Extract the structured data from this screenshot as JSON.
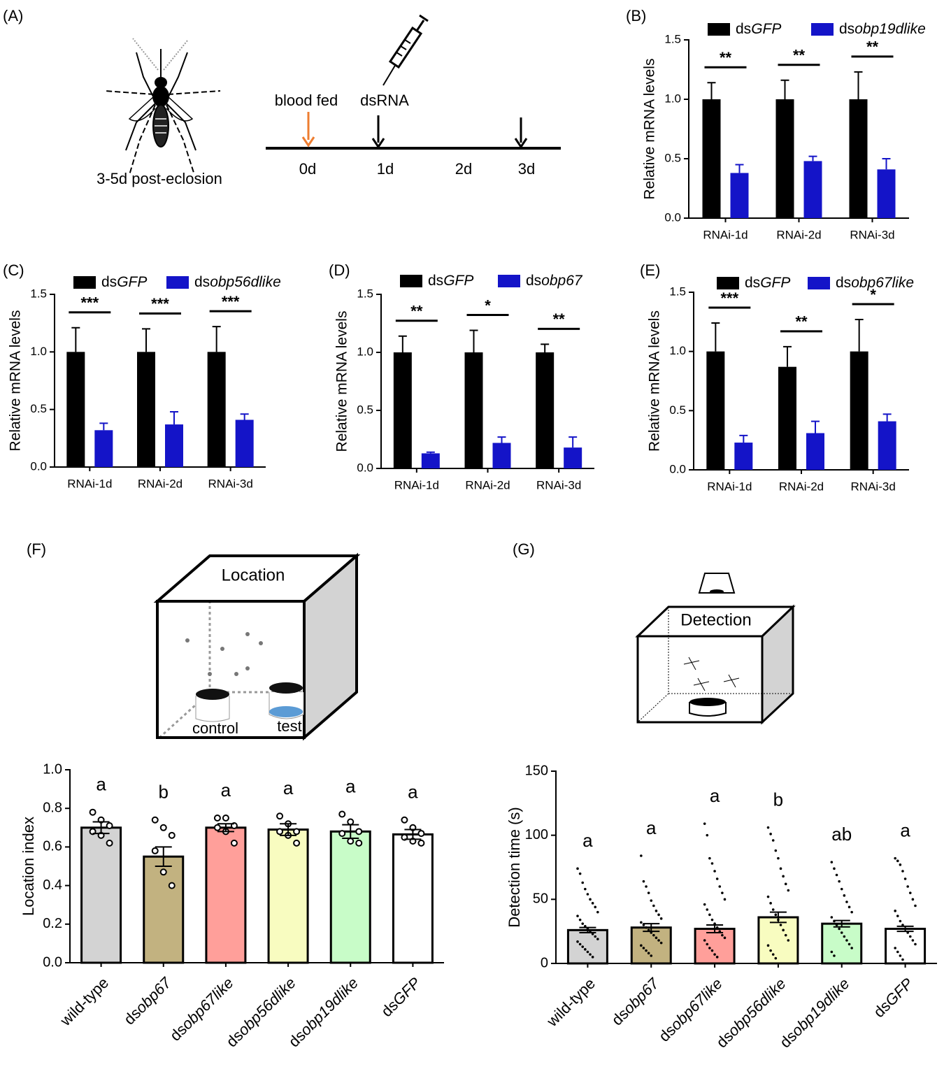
{
  "diagram_a": {
    "label": "(A)",
    "caption": "3-5d  post-eclosion",
    "events": [
      "blood fed",
      "dsRNA"
    ],
    "days": [
      "0d",
      "1d",
      "2d",
      "3d"
    ]
  },
  "diagram_f": {
    "label": "(F)",
    "box_title": "Location",
    "jars": [
      "control",
      "test"
    ]
  },
  "diagram_g": {
    "label": "(G)",
    "box_title": "Detection"
  },
  "chart_data": [
    {
      "type": "bar",
      "label": "(B)",
      "ylabel": "Relative mRNA levels",
      "categories": [
        "RNAi-1d",
        "RNAi-2d",
        "RNAi-3d"
      ],
      "series": [
        {
          "name": "dsGFP",
          "color": "#000000",
          "values": [
            1,
            1,
            1
          ],
          "errors": [
            0.14,
            0.16,
            0.23
          ]
        },
        {
          "name": "dsobp19dlike",
          "color": "#1414c8",
          "values": [
            0.38,
            0.48,
            0.41
          ],
          "errors": [
            0.07,
            0.04,
            0.09
          ]
        }
      ],
      "significance": [
        "**",
        "**",
        "**"
      ],
      "ylim": [
        0,
        1.5
      ],
      "yticks": [
        {
          "value": 0,
          "label": "0.0"
        },
        {
          "value": 0.5,
          "label": "0.5"
        },
        {
          "value": 1,
          "label": "1.0"
        },
        {
          "value": 1.5,
          "label": "1.5"
        }
      ]
    },
    {
      "type": "bar",
      "label": "(C)",
      "ylabel": "Relative mRNA levels",
      "categories": [
        "RNAi-1d",
        "RNAi-2d",
        "RNAi-3d"
      ],
      "series": [
        {
          "name": "dsGFP",
          "color": "#000000",
          "values": [
            1,
            1,
            1
          ],
          "errors": [
            0.21,
            0.2,
            0.22
          ]
        },
        {
          "name": "dsobp56dlike",
          "color": "#1414c8",
          "values": [
            0.32,
            0.37,
            0.41
          ],
          "errors": [
            0.06,
            0.11,
            0.05
          ]
        }
      ],
      "significance": [
        "***",
        "***",
        "***"
      ],
      "ylim": [
        0,
        1.5
      ],
      "yticks": [
        {
          "value": 0,
          "label": "0.0"
        },
        {
          "value": 0.5,
          "label": "0.5"
        },
        {
          "value": 1,
          "label": "1.0"
        },
        {
          "value": 1.5,
          "label": "1.5"
        }
      ]
    },
    {
      "type": "bar",
      "label": "(D)",
      "ylabel": "Relative mRNA levels",
      "categories": [
        "RNAi-1d",
        "RNAi-2d",
        "RNAi-3d"
      ],
      "series": [
        {
          "name": "dsGFP",
          "color": "#000000",
          "values": [
            1,
            1,
            1
          ],
          "errors": [
            0.14,
            0.19,
            0.07
          ]
        },
        {
          "name": "dsobp67",
          "color": "#1414c8",
          "values": [
            0.13,
            0.22,
            0.18
          ],
          "errors": [
            0.01,
            0.05,
            0.09
          ]
        }
      ],
      "significance": [
        "**",
        "*",
        "**"
      ],
      "ylim": [
        0,
        1.5
      ],
      "yticks": [
        {
          "value": 0,
          "label": "0.0"
        },
        {
          "value": 0.5,
          "label": "0.5"
        },
        {
          "value": 1,
          "label": "1.0"
        },
        {
          "value": 1.5,
          "label": "1.5"
        }
      ]
    },
    {
      "type": "bar",
      "label": "(E)",
      "ylabel": "Relative mRNA levels",
      "categories": [
        "RNAi-1d",
        "RNAi-2d",
        "RNAi-3d"
      ],
      "series": [
        {
          "name": "dsGFP",
          "color": "#000000",
          "values": [
            1,
            0.87,
            1
          ],
          "errors": [
            0.24,
            0.17,
            0.27
          ]
        },
        {
          "name": "dsobp67like",
          "color": "#1414c8",
          "values": [
            0.23,
            0.31,
            0.41
          ],
          "errors": [
            0.06,
            0.1,
            0.06
          ]
        }
      ],
      "significance": [
        "***",
        "**",
        "*"
      ],
      "ylim": [
        0,
        1.5
      ],
      "yticks": [
        {
          "value": 0,
          "label": "0.0"
        },
        {
          "value": 0.5,
          "label": "0.5"
        },
        {
          "value": 1,
          "label": "1.0"
        },
        {
          "value": 1.5,
          "label": "1.5"
        }
      ]
    },
    {
      "type": "bar",
      "ylabel": "Location index",
      "categories": [
        "wild-type",
        "dsobp67",
        "dsobp67like",
        "dsobp56dlike",
        "dsobp19dlike",
        "dsGFP"
      ],
      "values": [
        0.7,
        0.55,
        0.7,
        0.69,
        0.68,
        0.665
      ],
      "errors": [
        0.03,
        0.05,
        0.02,
        0.03,
        0.035,
        0.025
      ],
      "colors": [
        "#d3d3d3",
        "#c2b280",
        "#ff9f9a",
        "#f8fcc0",
        "#c8fcc8",
        "#ffffff"
      ],
      "letters": [
        "a",
        "b",
        "a",
        "a",
        "a",
        "a"
      ],
      "points": [
        [
          0.78,
          0.74,
          0.71,
          0.68,
          0.66,
          0.62
        ],
        [
          0.74,
          0.7,
          0.66,
          0.58,
          0.47,
          0.4
        ],
        [
          0.75,
          0.75,
          0.71,
          0.7,
          0.68,
          0.62
        ],
        [
          0.76,
          0.72,
          0.68,
          0.68,
          0.66,
          0.62
        ],
        [
          0.77,
          0.73,
          0.68,
          0.67,
          0.63,
          0.62
        ],
        [
          0.74,
          0.7,
          0.67,
          0.65,
          0.63,
          0.62
        ]
      ],
      "point_style": "open",
      "ylim": [
        0,
        1
      ],
      "yticks": [
        {
          "value": 0,
          "label": "0.0"
        },
        0.2,
        0.4,
        0.6,
        0.8,
        {
          "value": 1,
          "label": "1.0"
        }
      ]
    },
    {
      "type": "bar",
      "ylabel": "Detection time (s)",
      "categories": [
        "wild-type",
        "dsobp67",
        "dsobp67like",
        "dsobp56dlike",
        "dsobp19dlike",
        "dsGFP"
      ],
      "values": [
        26,
        28,
        27,
        36,
        31,
        27
      ],
      "errors": [
        2,
        3,
        3,
        4,
        2.5,
        2
      ],
      "colors": [
        "#d3d3d3",
        "#c2b280",
        "#ff9f9a",
        "#f8fcc0",
        "#c8fcc8",
        "#ffffff"
      ],
      "letters": [
        "a",
        "a",
        "a",
        "b",
        "ab",
        "a"
      ],
      "points": [
        [
          74,
          70,
          63,
          58,
          54,
          50,
          47,
          44,
          40,
          37,
          34,
          31,
          29,
          27,
          25,
          23,
          21,
          19,
          17,
          15,
          13,
          11,
          9,
          7,
          5
        ],
        [
          84,
          64,
          60,
          55,
          49,
          45,
          41,
          38,
          35,
          32,
          30,
          28,
          26,
          24,
          22,
          20,
          18,
          16,
          14,
          12,
          10,
          8,
          6
        ],
        [
          109,
          100,
          82,
          78,
          72,
          66,
          60,
          55,
          50,
          46,
          42,
          38,
          34,
          31,
          28,
          25,
          22,
          20,
          18,
          15,
          12,
          10,
          7,
          5
        ],
        [
          106,
          101,
          96,
          88,
          82,
          74,
          68,
          62,
          57,
          52,
          47,
          42,
          38,
          34,
          30,
          26,
          22,
          18,
          14,
          10,
          7,
          4
        ],
        [
          79,
          74,
          69,
          64,
          58,
          53,
          48,
          44,
          40,
          36,
          33,
          30,
          27,
          24,
          21,
          18,
          15,
          12,
          9,
          6
        ],
        [
          82,
          80,
          77,
          72,
          66,
          60,
          55,
          50,
          45,
          41,
          37,
          33,
          30,
          27,
          24,
          21,
          18,
          15,
          12,
          9,
          6,
          3
        ]
      ],
      "point_style": "dot",
      "ylim": [
        0,
        150
      ],
      "yticks": [
        0,
        50,
        100,
        150
      ]
    }
  ]
}
